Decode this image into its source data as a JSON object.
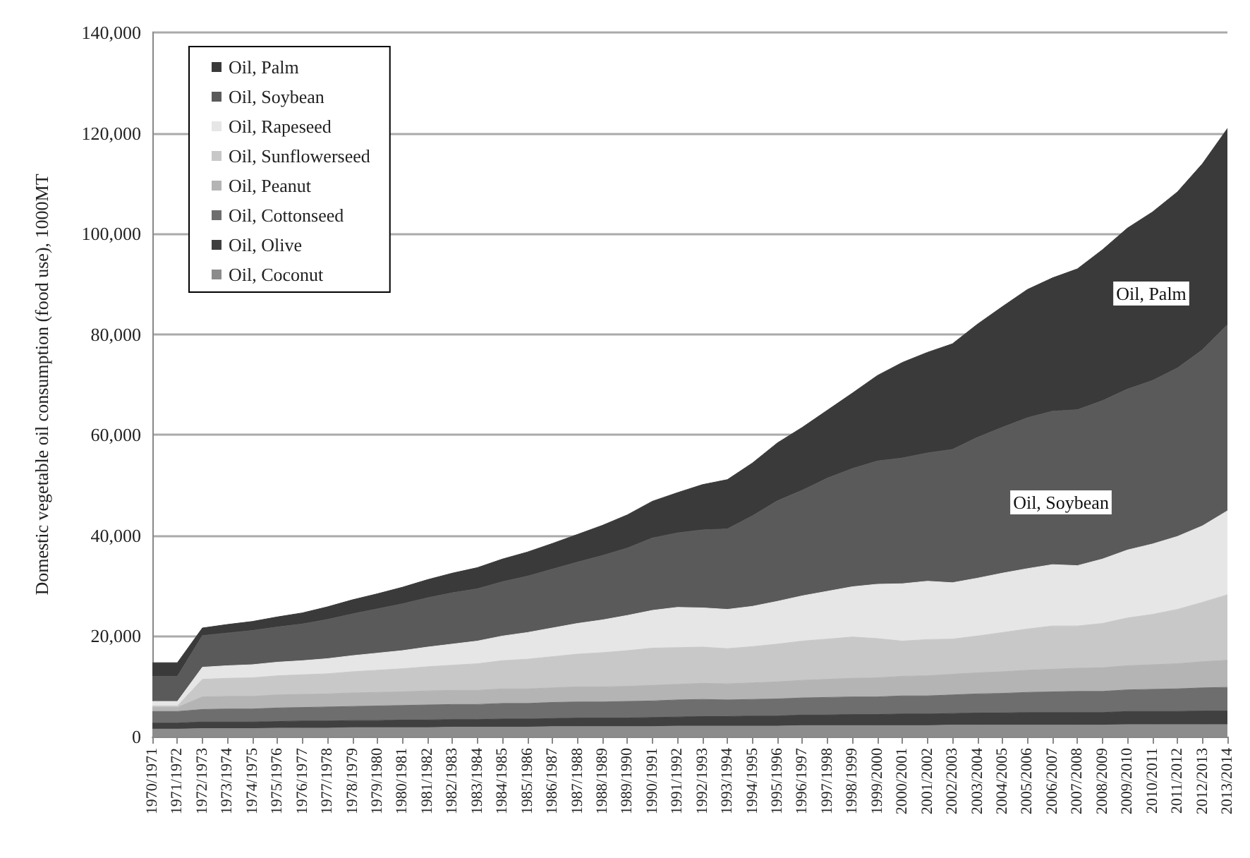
{
  "chart_data": {
    "type": "area",
    "stacked": true,
    "ylabel": "Domestic vegetable oil consumption (food use), 1000MT",
    "categories": [
      "1970/1971",
      "1971/1972",
      "1972/1973",
      "1973/1974",
      "1974/1975",
      "1975/1976",
      "1976/1977",
      "1977/1978",
      "1978/1979",
      "1979/1980",
      "1980/1981",
      "1981/1982",
      "1982/1983",
      "1983/1984",
      "1984/1985",
      "1985/1986",
      "1986/1987",
      "1987/1988",
      "1988/1989",
      "1989/1990",
      "1990/1991",
      "1991/1992",
      "1992/1993",
      "1993/1994",
      "1994/1995",
      "1995/1996",
      "1996/1997",
      "1997/1998",
      "1998/1999",
      "1999/2000",
      "2000/2001",
      "2001/2002",
      "2002/2003",
      "2003/2004",
      "2004/2005",
      "2005/2006",
      "2006/2007",
      "2007/2008",
      "2008/2009",
      "2009/2010",
      "2010/2011",
      "2011/2012",
      "2012/2013",
      "2013/2014"
    ],
    "series": [
      {
        "name": "Oil, Coconut",
        "color": "#8c8c8c",
        "values": [
          1500,
          1500,
          1600,
          1600,
          1600,
          1700,
          1700,
          1700,
          1800,
          1800,
          1800,
          1800,
          1900,
          1900,
          1900,
          1900,
          2000,
          2000,
          2000,
          2000,
          2000,
          2100,
          2100,
          2100,
          2100,
          2100,
          2200,
          2200,
          2200,
          2200,
          2200,
          2200,
          2300,
          2300,
          2300,
          2300,
          2300,
          2300,
          2300,
          2400,
          2400,
          2400,
          2400,
          2400
        ]
      },
      {
        "name": "Oil, Olive",
        "color": "#404040",
        "values": [
          1200,
          1200,
          1300,
          1300,
          1300,
          1300,
          1400,
          1400,
          1400,
          1400,
          1500,
          1500,
          1500,
          1500,
          1600,
          1600,
          1600,
          1700,
          1700,
          1700,
          1800,
          1800,
          1900,
          1900,
          2000,
          2000,
          2100,
          2100,
          2200,
          2200,
          2300,
          2300,
          2300,
          2400,
          2400,
          2500,
          2500,
          2500,
          2500,
          2600,
          2600,
          2600,
          2700,
          2700
        ]
      },
      {
        "name": "Oil, Cottonseed",
        "color": "#6e6e6e",
        "values": [
          2300,
          2300,
          2500,
          2600,
          2600,
          2700,
          2700,
          2800,
          2800,
          2900,
          2900,
          3000,
          3000,
          3000,
          3100,
          3100,
          3200,
          3200,
          3200,
          3300,
          3300,
          3400,
          3400,
          3300,
          3300,
          3400,
          3400,
          3500,
          3500,
          3500,
          3600,
          3600,
          3700,
          3800,
          3900,
          4000,
          4100,
          4200,
          4200,
          4300,
          4400,
          4500,
          4600,
          4700
        ]
      },
      {
        "name": "Oil, Peanut",
        "color": "#b4b4b4",
        "values": [
          800,
          800,
          2500,
          2500,
          2500,
          2600,
          2600,
          2600,
          2700,
          2700,
          2700,
          2800,
          2800,
          2800,
          2900,
          2900,
          2900,
          3000,
          3000,
          3000,
          3100,
          3100,
          3200,
          3200,
          3300,
          3400,
          3500,
          3600,
          3700,
          3800,
          3900,
          4000,
          4100,
          4200,
          4300,
          4400,
          4500,
          4600,
          4700,
          4800,
          4900,
          5000,
          5200,
          5400
        ]
      },
      {
        "name": "Oil, Sunflowerseed",
        "color": "#c8c8c8",
        "values": [
          300,
          300,
          3500,
          3600,
          3700,
          3800,
          3900,
          4000,
          4200,
          4400,
          4600,
          4800,
          5000,
          5300,
          5600,
          5900,
          6200,
          6500,
          6800,
          7100,
          7400,
          7300,
          7200,
          7000,
          7200,
          7500,
          7800,
          8000,
          8200,
          7800,
          7000,
          7200,
          7000,
          7300,
          7800,
          8200,
          8600,
          8400,
          8800,
          9500,
          10000,
          10800,
          11800,
          13000
        ]
      },
      {
        "name": "Oil, Rapeseed",
        "color": "#e6e6e6",
        "values": [
          900,
          900,
          2400,
          2500,
          2600,
          2700,
          2800,
          3000,
          3200,
          3400,
          3600,
          3900,
          4200,
          4500,
          4900,
          5300,
          5700,
          6100,
          6500,
          7000,
          7500,
          8000,
          7800,
          7800,
          8000,
          8500,
          9000,
          9500,
          10000,
          10800,
          11400,
          11600,
          11200,
          11500,
          11800,
          12000,
          12200,
          12000,
          12800,
          13500,
          14000,
          14500,
          15200,
          16700
        ]
      },
      {
        "name": "Oil, Soybean",
        "color": "#5a5a5a",
        "values": [
          5000,
          5000,
          6300,
          6500,
          6800,
          7000,
          7300,
          7800,
          8300,
          8800,
          9300,
          9800,
          10200,
          10400,
          10800,
          11200,
          11700,
          12200,
          12800,
          13400,
          14400,
          14800,
          15500,
          16000,
          18000,
          20000,
          21000,
          22500,
          23500,
          24500,
          25000,
          25500,
          26500,
          28000,
          29000,
          30000,
          30500,
          31000,
          31500,
          32000,
          32500,
          33500,
          35000,
          37000
        ]
      },
      {
        "name": "Oil, Palm",
        "color": "#3a3a3a",
        "values": [
          2700,
          2700,
          1500,
          1700,
          1800,
          2000,
          2200,
          2500,
          2800,
          3000,
          3300,
          3600,
          3900,
          4200,
          4500,
          4800,
          5100,
          5500,
          6000,
          6600,
          7300,
          8000,
          9000,
          9800,
          10500,
          11500,
          12500,
          13500,
          15000,
          17000,
          19000,
          20000,
          21000,
          22500,
          24000,
          25500,
          26500,
          28000,
          30000,
          32000,
          33500,
          35000,
          37000,
          39000
        ]
      }
    ],
    "ylim": [
      0,
      140000
    ],
    "yticks": [
      0,
      {
        "value": 20000,
        "label": "20,000"
      },
      {
        "value": 40000,
        "label": "40,000"
      },
      {
        "value": 60000,
        "label": "60,000"
      },
      {
        "value": 80000,
        "label": "80,000"
      },
      {
        "value": 100000,
        "label": "100,000"
      },
      {
        "value": 120000,
        "label": "120,000"
      },
      {
        "value": 140000,
        "label": "140,000"
      }
    ],
    "grid": "y",
    "legend": "top left",
    "annotations": [
      "Oil, Palm",
      "Oil, Soybean"
    ]
  }
}
